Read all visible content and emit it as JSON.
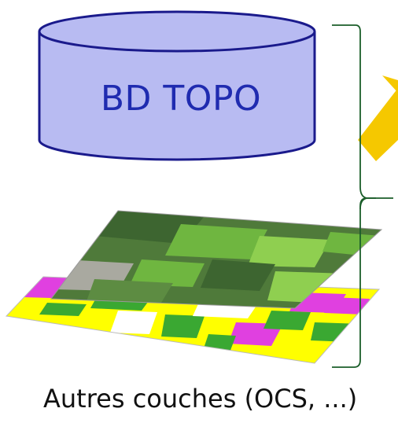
{
  "database": {
    "label": "BD TOPO",
    "fill": "#b8bbf2",
    "stroke": "#1a1a8c",
    "text_color": "#1f2bb0"
  },
  "layers": {
    "caption": "Autres couches (OCS, ...)",
    "aerial_colors": [
      "#4f7a3a",
      "#3d6530",
      "#6fb640",
      "#8fcf50",
      "#a9a9a0"
    ],
    "landcover_colors": [
      "#ffff00",
      "#e040e0",
      "#3aa832",
      "#ffffff"
    ]
  },
  "braces_color": "#1b5e2a",
  "arrow_color": "#f5c800"
}
